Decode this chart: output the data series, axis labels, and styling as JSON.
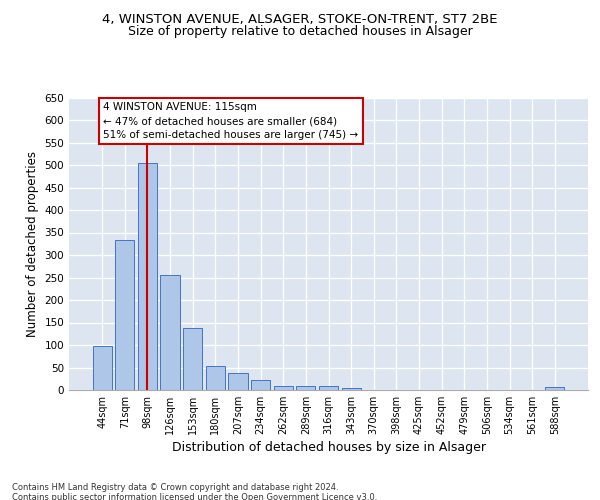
{
  "title1": "4, WINSTON AVENUE, ALSAGER, STOKE-ON-TRENT, ST7 2BE",
  "title2": "Size of property relative to detached houses in Alsager",
  "xlabel": "Distribution of detached houses by size in Alsager",
  "ylabel": "Number of detached properties",
  "categories": [
    "44sqm",
    "71sqm",
    "98sqm",
    "126sqm",
    "153sqm",
    "180sqm",
    "207sqm",
    "234sqm",
    "262sqm",
    "289sqm",
    "316sqm",
    "343sqm",
    "370sqm",
    "398sqm",
    "425sqm",
    "452sqm",
    "479sqm",
    "506sqm",
    "534sqm",
    "561sqm",
    "588sqm"
  ],
  "values": [
    97,
    333,
    505,
    255,
    138,
    53,
    37,
    22,
    10,
    10,
    10,
    5,
    0,
    0,
    0,
    0,
    0,
    0,
    0,
    0,
    7
  ],
  "bar_color": "#aec6e8",
  "bar_edge_color": "#4472c4",
  "vline_x": 2,
  "vline_color": "#cc0000",
  "annotation_text": "4 WINSTON AVENUE: 115sqm\n← 47% of detached houses are smaller (684)\n51% of semi-detached houses are larger (745) →",
  "annotation_box_color": "#ffffff",
  "annotation_box_edge": "#cc0000",
  "ylim": [
    0,
    650
  ],
  "yticks": [
    0,
    50,
    100,
    150,
    200,
    250,
    300,
    350,
    400,
    450,
    500,
    550,
    600,
    650
  ],
  "bg_color": "#dde6f0",
  "footer": "Contains HM Land Registry data © Crown copyright and database right 2024.\nContains public sector information licensed under the Open Government Licence v3.0.",
  "title1_fontsize": 9.5,
  "title2_fontsize": 9,
  "xlabel_fontsize": 9,
  "ylabel_fontsize": 8.5
}
